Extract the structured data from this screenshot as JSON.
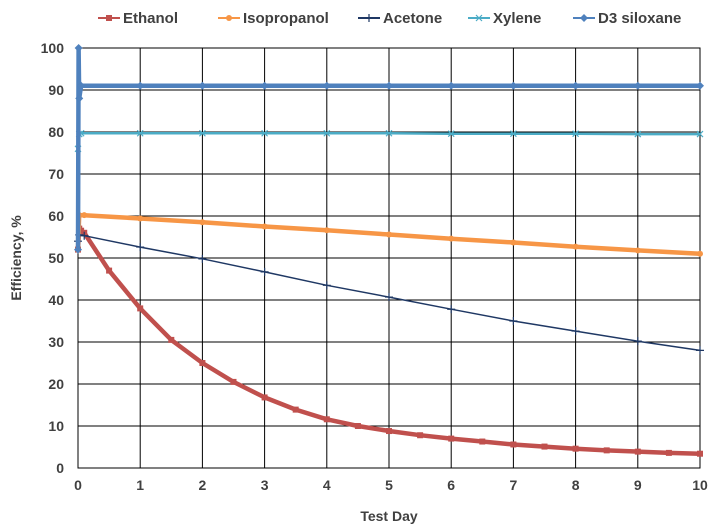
{
  "chart_data": {
    "type": "line",
    "title": "",
    "xlabel": "Test Day",
    "ylabel": "Efficiency, %",
    "xlim": [
      0,
      10
    ],
    "ylim": [
      0,
      100
    ],
    "xticks": [
      "0",
      "1",
      "2",
      "3",
      "4",
      "5",
      "6",
      "7",
      "8",
      "9",
      "10"
    ],
    "yticks": [
      "0",
      "10",
      "20",
      "30",
      "40",
      "50",
      "60",
      "70",
      "80",
      "90",
      "100"
    ],
    "grid": true,
    "legend_position": "top",
    "series": [
      {
        "name": "Ethanol",
        "color": "#C0504D",
        "marker": "square",
        "x": [
          0,
          0.02,
          0.05,
          0.1,
          0.5,
          1,
          1.5,
          2,
          2.5,
          3,
          3.5,
          4,
          4.5,
          5,
          5.5,
          6,
          6.5,
          7,
          7.5,
          8,
          8.5,
          9,
          9.5,
          10
        ],
        "y": [
          52,
          57,
          56.5,
          56,
          47,
          38,
          30.5,
          25,
          20.5,
          16.8,
          13.9,
          11.6,
          10,
          8.8,
          7.8,
          7,
          6.3,
          5.6,
          5.1,
          4.6,
          4.2,
          3.9,
          3.6,
          3.4
        ]
      },
      {
        "name": "Isopropanol",
        "color": "#F79646",
        "marker": "circle",
        "x": [
          0,
          0.02,
          0.1,
          1,
          2,
          3,
          4,
          5,
          6,
          7,
          8,
          9,
          10
        ],
        "y": [
          52,
          60.2,
          60.2,
          59.4,
          58.5,
          57.5,
          56.6,
          55.6,
          54.6,
          53.7,
          52.7,
          51.8,
          51
        ]
      },
      {
        "name": "Acetone",
        "color": "#1F3864",
        "marker": "plus",
        "x": [
          0,
          0.02,
          0.1,
          1,
          2,
          3,
          4,
          5,
          6,
          7,
          8,
          9,
          10
        ],
        "y": [
          54,
          55.5,
          55.3,
          52.6,
          49.8,
          46.7,
          43.5,
          40.7,
          37.8,
          35,
          32.6,
          30.2,
          28
        ]
      },
      {
        "name": "Xylene",
        "color": "#4BACC6",
        "marker": "x",
        "x": [
          0,
          0.02,
          0.05,
          1,
          2,
          3,
          4,
          5,
          6,
          7,
          8,
          9,
          10
        ],
        "y": [
          76,
          79.5,
          79.7,
          79.7,
          79.7,
          79.7,
          79.7,
          79.7,
          79.6,
          79.6,
          79.6,
          79.5,
          79.5
        ]
      },
      {
        "name": "D3 siloxane",
        "color": "#4F81BD",
        "marker": "diamond",
        "x": [
          0,
          0.01,
          0.02,
          0.05,
          1,
          2,
          3,
          4,
          5,
          6,
          7,
          8,
          9,
          10
        ],
        "y": [
          52,
          100,
          88,
          91,
          91,
          91,
          91,
          91,
          91,
          91,
          91,
          91,
          91,
          91
        ]
      }
    ]
  }
}
